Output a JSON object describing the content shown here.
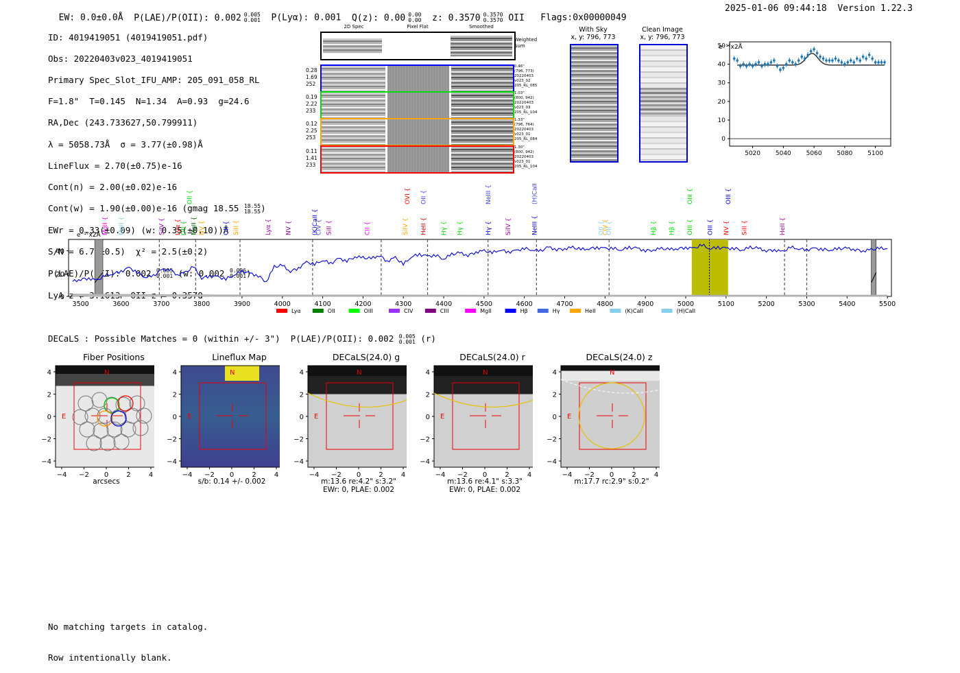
{
  "header": {
    "ew": "EW: 0.0±0.0Å",
    "plae_prefix": "P(LAE)/P(OII): 0.002",
    "plae_sup": "0.005",
    "plae_sub": "0.001",
    "plya": "P(Lyα): 0.001",
    "qz_prefix": "Q(z): 0.00",
    "qz_sup": "0.00",
    "qz_sub": "0.00",
    "z_prefix": "z: 0.3570",
    "z_sup": "0.3570",
    "z_sub": "0.3570",
    "z_line": "OII",
    "flags": "Flags:0x00000049",
    "timestamp": "2025-01-06 09:44:18",
    "version": "Version 1.22.3"
  },
  "info": {
    "id": "ID: 4019419051 (4019419051.pdf)",
    "obs": "Obs: 20220403v023_4019419051",
    "primary": "Primary Spec_Slot_IFU_AMP: 205_091_058_RL",
    "params": "F=1.8\"  T=0.145  N=1.34  A=0.93  g=24.6",
    "radec": "RA,Dec (243.733627,50.799911)",
    "lambda": "λ = 5058.73Å  σ = 3.77(±0.98)Å",
    "lineflux": "LineFlux = 2.70(±0.75)e-16",
    "contn": "Cont(n) = 2.00(±0.02)e-16",
    "contw_prefix": "Cont(w) = 1.90(±0.00)e-16 (gmag 18.55",
    "contw_sup": "18.55",
    "contw_sub": "18.55",
    "contw_suffix": ")",
    "ewr": "EWr = 0.33(±0.09) (w: 0.35(±0.10))Å",
    "sn": "S/N = 6.7(±0.5)  χ² = 2.5(±0.2)",
    "plae_prefix": "P(LAE)/P(OII): 0.002",
    "plae_sup": "0.005",
    "plae_sub": "0.001",
    "plae_w_prefix": "(w: 0.002",
    "plae_w_sup": "0.006",
    "plae_w_sub": "0.001",
    "plae_w_suffix": ")",
    "lyaz": "LyA z = 3.1613  OII z = 0.3570"
  },
  "cutouts": {
    "col_2d": "2D Spec",
    "col_flat": "Pixel Flat",
    "col_smooth": "Smoothed",
    "weighted_sum": "Weighted Sum",
    "rows": [
      {
        "v1": "0.28",
        "v2": "1.69",
        "v3": "252",
        "note1": "0.46\"",
        "note2": "(796, 773)",
        "note3": "20220403",
        "note4": "v023_02",
        "note5": "205_RL_085",
        "color": "#0000ff"
      },
      {
        "v1": "0.19",
        "v2": "2.22",
        "v3": "233",
        "note1": "1.03\"",
        "note2": "(800, 942)",
        "note3": "20220403",
        "note4": "v023_03",
        "note5": "205_RL_104",
        "color": "#00dd00"
      },
      {
        "v1": "0.12",
        "v2": "2.25",
        "v3": "253",
        "note1": "1.33\"",
        "note2": "(796, 764)",
        "note3": "20220403",
        "note4": "v023_01",
        "note5": "205_RL_084",
        "color": "#ffa500"
      },
      {
        "v1": "0.11",
        "v2": "1.41",
        "v3": "233",
        "note1": "1.30\"",
        "note2": "(800, 942)",
        "note3": "20220403",
        "note4": "v023_01",
        "note5": "205_RL_104",
        "color": "#ff0000"
      }
    ]
  },
  "sky_panels": {
    "with_sky_title": "With Sky",
    "with_sky_coords": "x, y: 796, 773",
    "clean_title": "Clean Image",
    "clean_coords": "x, y: 796, 773"
  },
  "zoom_chart": {
    "unit": "e⁻¹⁷x2Å",
    "ytick_labels": [
      "0",
      "10",
      "20",
      "30",
      "40",
      "50"
    ],
    "xtick_labels": [
      "5020",
      "5040",
      "5060",
      "5080",
      "5100"
    ]
  },
  "full_spectrum": {
    "unit": "e⁻¹⁷x2Å",
    "ytick_labels": [
      "0",
      "20",
      "40"
    ],
    "xtick_labels": [
      "3500",
      "3600",
      "3700",
      "3800",
      "3900",
      "4000",
      "4100",
      "4200",
      "4300",
      "4400",
      "4500",
      "4600",
      "4700",
      "4800",
      "4900",
      "5000",
      "5100",
      "5200",
      "5300",
      "5400",
      "5500"
    ],
    "line_labels": [
      {
        "t": "MgII",
        "c": "#ee00ee"
      },
      {
        "t": "MgII",
        "c": "#87ceeb"
      },
      {
        "t": "SiIV",
        "c": "#8800aa"
      },
      {
        "t": "Lyα",
        "c": "#ff0000"
      },
      {
        "t": "OII",
        "c": "#00bb00"
      },
      {
        "t": "MgII",
        "c": "#006600"
      },
      {
        "t": "OII",
        "c": "#00dd00"
      },
      {
        "t": "NV",
        "c": "#ffa500"
      },
      {
        "t": "OII",
        "c": "#0000cc"
      },
      {
        "t": "SiII",
        "c": "#ffa500"
      },
      {
        "t": "Lyα",
        "c": "#aa00aa"
      },
      {
        "t": "NV",
        "c": "#8800aa"
      },
      {
        "t": "(K)CaII",
        "c": "#0000cc"
      },
      {
        "t": "CIV",
        "c": "#4444cc"
      },
      {
        "t": "SiII",
        "c": "#aa00aa"
      },
      {
        "t": "CII",
        "c": "#ee00ee"
      },
      {
        "t": "SiIV",
        "c": "#ffa500"
      },
      {
        "t": "OVI",
        "c": "#ff0000"
      },
      {
        "t": "OII",
        "c": "#4444dd"
      },
      {
        "t": "HeII",
        "c": "#cc0000"
      },
      {
        "t": "Hγ",
        "c": "#00dd00"
      },
      {
        "t": "Hγ",
        "c": "#00dd00"
      },
      {
        "t": "NeIII",
        "c": "#4444dd"
      },
      {
        "t": "Hγ",
        "c": "#0000cc"
      },
      {
        "t": "SiIV",
        "c": "#aa00aa"
      },
      {
        "t": "(H)CaII",
        "c": "#4444dd"
      },
      {
        "t": "NeIII",
        "c": "#0000cc"
      },
      {
        "t": "OII",
        "c": "#87ceeb"
      },
      {
        "t": "CIV",
        "c": "#ffa500"
      },
      {
        "t": "OII",
        "c": "#87ceeb"
      },
      {
        "t": "Hβ",
        "c": "#00dd00"
      },
      {
        "t": "Hβ",
        "c": "#00dd00"
      },
      {
        "t": "OIII",
        "c": "#00cc00"
      },
      {
        "t": "OIII",
        "c": "#00cc00"
      },
      {
        "t": "OIII",
        "c": "#0000cc"
      },
      {
        "t": "NV",
        "c": "#ff0000"
      },
      {
        "t": "OIII",
        "c": "#0000cc"
      },
      {
        "t": "SiII",
        "c": "#ff0000"
      },
      {
        "t": "HeII",
        "c": "#aa00aa"
      }
    ],
    "legend": [
      {
        "label": "Lyα",
        "color": "#ff0000"
      },
      {
        "label": "OII",
        "color": "#008000"
      },
      {
        "label": "OIII",
        "color": "#00ff00"
      },
      {
        "label": "CIV",
        "color": "#9933ff"
      },
      {
        "label": "CIII",
        "color": "#800080"
      },
      {
        "label": "MgII",
        "color": "#ff00ff"
      },
      {
        "label": "Hβ",
        "color": "#0000ff"
      },
      {
        "label": "Hγ",
        "color": "#4169e1"
      },
      {
        "label": "HeII",
        "color": "#ffa500"
      },
      {
        "label": "(K)CaII",
        "color": "#87ceeb"
      },
      {
        "label": "(H)CaII",
        "color": "#87ceeb"
      }
    ]
  },
  "decals": {
    "summary_prefix": "DECaLS : Possible Matches = 0 (within +/- 3\")  P(LAE)/P(OII): 0.002",
    "summary_sup": "0.005",
    "summary_sub": "0.001",
    "summary_suffix": "(r)",
    "panels": [
      {
        "title": "Fiber Positions",
        "cap1": "arcsecs",
        "cap2": ""
      },
      {
        "title": "Lineflux Map",
        "cap1": "s/b: 0.14 +/- 0.002",
        "cap2": ""
      },
      {
        "title": "DECaLS(24.0) g",
        "cap1": "m:13.6  re:4.2\"  s:3.2\"",
        "cap2": "EWr: 0, PLAE: 0.002"
      },
      {
        "title": "DECaLS(24.0) r",
        "cap1": "m:13.6  re:4.1\"  s:3.3\"",
        "cap2": "EWr: 0, PLAE: 0.002"
      },
      {
        "title": "DECaLS(24.0) z",
        "cap1": "m:17.7 rc:2.9\"  s:0.2\"",
        "cap2": ""
      }
    ],
    "ytick_labels": [
      "4",
      "2",
      "0",
      "−2",
      "−4"
    ],
    "xtick_labels": [
      "−4",
      "−2",
      "0",
      "2",
      "4"
    ],
    "north": "N",
    "east": "E"
  },
  "footer": {
    "line1": "No matching targets in catalog.",
    "line2": "Row intentionally blank."
  },
  "chart_data": [
    {
      "type": "scatter",
      "title": "",
      "xlabel": "",
      "ylabel": "e-17 x2A",
      "xlim": [
        5005,
        5110
      ],
      "ylim": [
        -4,
        52
      ],
      "x": [
        5008,
        5010,
        5012,
        5014,
        5016,
        5018,
        5020,
        5022,
        5024,
        5026,
        5028,
        5030,
        5032,
        5034,
        5036,
        5038,
        5040,
        5042,
        5044,
        5046,
        5048,
        5050,
        5052,
        5054,
        5056,
        5058,
        5060,
        5062,
        5064,
        5066,
        5068,
        5070,
        5072,
        5074,
        5076,
        5078,
        5080,
        5082,
        5084,
        5086,
        5088,
        5090,
        5092,
        5094,
        5096,
        5098,
        5100,
        5102,
        5104,
        5106
      ],
      "values": [
        43,
        42,
        39,
        40,
        39,
        40,
        39,
        40,
        41,
        39,
        40,
        40,
        41,
        42,
        39,
        37,
        38,
        40,
        42,
        41,
        40,
        42,
        44,
        43,
        45,
        47,
        48,
        46,
        44,
        43,
        42,
        42,
        42,
        43,
        42,
        41,
        40,
        41,
        42,
        41,
        43,
        42,
        44,
        43,
        45,
        43,
        41,
        41,
        41,
        41
      ],
      "model": {
        "baseline": 39.5,
        "peak_x": 5058.7,
        "amplitude": 6.3,
        "sigma": 3.8
      }
    },
    {
      "type": "line",
      "title": "",
      "xlabel": "",
      "ylabel": "e-17 x2A",
      "xlim": [
        3470,
        5510
      ],
      "ylim": [
        0,
        50
      ],
      "x": [
        3480,
        3500,
        3520,
        3540,
        3560,
        3580,
        3600,
        3620,
        3640,
        3660,
        3680,
        3700,
        3720,
        3740,
        3760,
        3780,
        3800,
        3820,
        3840,
        3860,
        3880,
        3900,
        3920,
        3940,
        3960,
        3980,
        4000,
        4020,
        4040,
        4060,
        4080,
        4100,
        4120,
        4140,
        4160,
        4180,
        4200,
        4220,
        4240,
        4260,
        4280,
        4300,
        4320,
        4340,
        4360,
        4380,
        4400,
        4420,
        4440,
        4460,
        4480,
        4500,
        4520,
        4540,
        4560,
        4580,
        4600,
        4620,
        4640,
        4660,
        4680,
        4700,
        4720,
        4740,
        4760,
        4780,
        4800,
        4820,
        4840,
        4860,
        4880,
        4900,
        4920,
        4940,
        4960,
        4980,
        5000,
        5020,
        5040,
        5060,
        5080,
        5100,
        5120,
        5140,
        5160,
        5180,
        5200,
        5220,
        5240,
        5260,
        5280,
        5300,
        5320,
        5340,
        5360,
        5380,
        5400,
        5420,
        5440,
        5460,
        5480,
        5500
      ],
      "values": [
        13,
        15,
        16,
        14,
        18,
        20,
        22,
        25,
        21,
        17,
        18,
        23,
        24,
        19,
        21,
        26,
        16,
        18,
        17,
        15,
        19,
        22,
        20,
        18,
        13,
        26,
        27,
        22,
        25,
        30,
        28,
        32,
        29,
        33,
        31,
        35,
        34,
        33,
        36,
        31,
        34,
        28,
        35,
        37,
        35,
        36,
        33,
        37,
        38,
        36,
        39,
        40,
        38,
        41,
        39,
        40,
        42,
        41,
        40,
        43,
        41,
        42,
        43,
        41,
        42,
        43,
        42,
        42,
        41,
        43,
        42,
        40,
        41,
        42,
        41,
        42,
        43,
        42,
        45,
        42,
        43,
        42,
        42,
        41,
        43,
        42,
        40,
        41,
        39,
        43,
        42,
        41,
        42,
        41,
        41,
        42,
        42,
        41,
        40,
        41,
        42,
        42
      ],
      "sky_x": [
        3480,
        3700,
        3900,
        4100,
        4300,
        4500,
        4700,
        4900,
        5100,
        5300,
        5500
      ],
      "sky_values": [
        2,
        1.5,
        1.2,
        1.2,
        1.2,
        1.1,
        1.1,
        1.0,
        1.0,
        1.0,
        1.0
      ],
      "highlight_range": [
        5015,
        5105
      ],
      "line_marker": 5058.7,
      "masked_ranges": [
        [
          3535,
          3555
        ],
        [
          5460,
          5472
        ]
      ],
      "dashed_x": [
        3695,
        3785,
        3895,
        4075,
        4245,
        4360,
        4510,
        4630,
        4810,
        5245,
        5300
      ]
    }
  ]
}
